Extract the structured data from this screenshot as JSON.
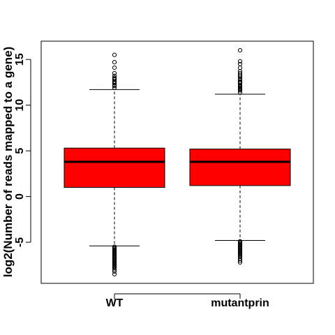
{
  "chart_data": {
    "type": "boxplot",
    "title": "",
    "xlabel": "",
    "ylabel": "log2(Number of reads mapped to a gene)",
    "ylim": [
      -9.5,
      17
    ],
    "yticks": [
      -5,
      0,
      5,
      10,
      15
    ],
    "grid": false,
    "categories": [
      "WT",
      "mutantprin"
    ],
    "box_color": "#ff0000",
    "boxes": [
      {
        "name": "WT",
        "whisker_low": -5.4,
        "q1": 1.0,
        "median": 3.8,
        "q3": 5.3,
        "whisker_high": 11.7,
        "outliers_high": [
          11.9,
          12.1,
          12.2,
          12.4,
          12.5,
          12.6,
          12.8,
          12.9,
          13.0,
          13.2,
          13.5,
          14.1,
          14.7,
          15.5
        ],
        "outliers_low": [
          -5.5,
          -5.6,
          -5.7,
          -5.8,
          -5.9,
          -6.0,
          -6.1,
          -6.2,
          -6.3,
          -6.4,
          -6.5,
          -6.6,
          -6.7,
          -6.8,
          -6.9,
          -7.0,
          -7.1,
          -7.2,
          -7.3,
          -7.4,
          -7.5,
          -7.6,
          -7.7,
          -7.8,
          -8.0,
          -8.2,
          -8.5
        ]
      },
      {
        "name": "mutantprin",
        "whisker_low": -4.8,
        "q1": 1.2,
        "median": 3.8,
        "q3": 5.2,
        "whisker_high": 11.2,
        "outliers_high": [
          11.4,
          11.6,
          11.7,
          11.8,
          11.9,
          12.0,
          12.1,
          12.2,
          12.4,
          12.5,
          12.6,
          12.8,
          12.9,
          13.1,
          13.3,
          13.5,
          13.7,
          14.1,
          14.5,
          14.8,
          16.0
        ],
        "outliers_low": [
          -4.9,
          -5.0,
          -5.1,
          -5.2,
          -5.3,
          -5.4,
          -5.5,
          -5.6,
          -5.7,
          -5.8,
          -5.9,
          -6.0,
          -6.1,
          -6.2,
          -6.3,
          -6.4,
          -6.5,
          -6.6,
          -6.8,
          -7.0,
          -7.2
        ]
      }
    ]
  }
}
